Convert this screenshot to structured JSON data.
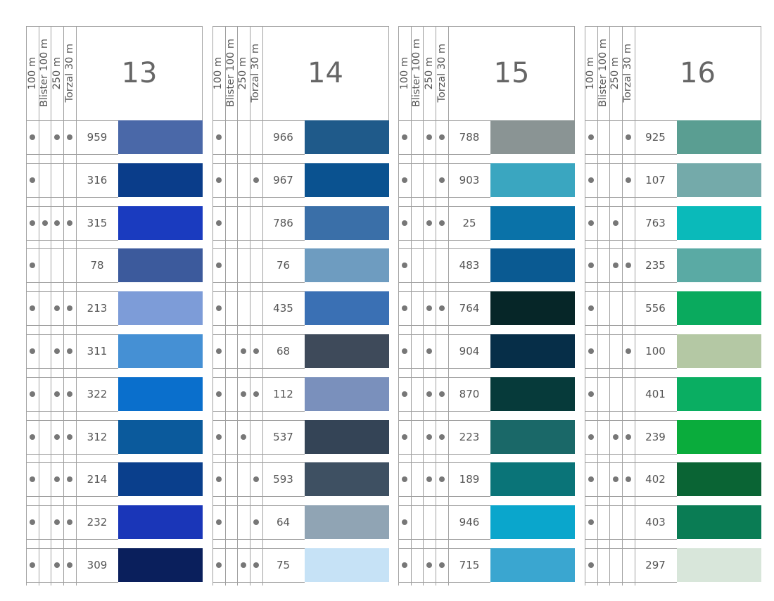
{
  "column_headers": [
    "100 m",
    "Blister 100 m",
    "250 m",
    "Torzal 30 m"
  ],
  "panels": [
    {
      "number": "13",
      "rows": [
        {
          "code": "959",
          "avail": [
            1,
            0,
            1,
            1
          ],
          "color": "#4a68a8"
        },
        {
          "code": "316",
          "avail": [
            1,
            0,
            0,
            0
          ],
          "color": "#0a3d8a"
        },
        {
          "code": "315",
          "avail": [
            1,
            1,
            1,
            1
          ],
          "color": "#1a3bbf"
        },
        {
          "code": "78",
          "avail": [
            1,
            0,
            0,
            0
          ],
          "color": "#3c5a9c"
        },
        {
          "code": "213",
          "avail": [
            1,
            0,
            1,
            1
          ],
          "color": "#7d9cd8"
        },
        {
          "code": "311",
          "avail": [
            1,
            0,
            1,
            1
          ],
          "color": "#4590d4"
        },
        {
          "code": "322",
          "avail": [
            1,
            0,
            1,
            1
          ],
          "color": "#0a6fcc"
        },
        {
          "code": "312",
          "avail": [
            1,
            0,
            1,
            1
          ],
          "color": "#0b5a9c"
        },
        {
          "code": "214",
          "avail": [
            1,
            0,
            1,
            1
          ],
          "color": "#0a3f8c"
        },
        {
          "code": "232",
          "avail": [
            1,
            0,
            1,
            1
          ],
          "color": "#1a36b8"
        },
        {
          "code": "309",
          "avail": [
            1,
            0,
            1,
            1
          ],
          "color": "#0a1f5c"
        }
      ]
    },
    {
      "number": "14",
      "rows": [
        {
          "code": "966",
          "avail": [
            1,
            0,
            0,
            0
          ],
          "color": "#1f5a8a"
        },
        {
          "code": "967",
          "avail": [
            1,
            0,
            0,
            1
          ],
          "color": "#0a5290"
        },
        {
          "code": "786",
          "avail": [
            1,
            0,
            0,
            0
          ],
          "color": "#3a6fa8"
        },
        {
          "code": "76",
          "avail": [
            1,
            0,
            0,
            0
          ],
          "color": "#6e9cc0"
        },
        {
          "code": "435",
          "avail": [
            1,
            0,
            0,
            0
          ],
          "color": "#3a70b4"
        },
        {
          "code": "68",
          "avail": [
            1,
            0,
            1,
            1
          ],
          "color": "#3e4a5a"
        },
        {
          "code": "112",
          "avail": [
            1,
            0,
            1,
            1
          ],
          "color": "#7a90bc"
        },
        {
          "code": "537",
          "avail": [
            1,
            0,
            1,
            0
          ],
          "color": "#344456"
        },
        {
          "code": "593",
          "avail": [
            1,
            0,
            0,
            1
          ],
          "color": "#3e5062"
        },
        {
          "code": "64",
          "avail": [
            1,
            0,
            0,
            1
          ],
          "color": "#90a4b4"
        },
        {
          "code": "75",
          "avail": [
            1,
            0,
            1,
            1
          ],
          "color": "#c6e2f6"
        }
      ]
    },
    {
      "number": "15",
      "rows": [
        {
          "code": "788",
          "avail": [
            1,
            0,
            1,
            1
          ],
          "color": "#8a9494"
        },
        {
          "code": "903",
          "avail": [
            1,
            0,
            0,
            1
          ],
          "color": "#3aa6c0"
        },
        {
          "code": "25",
          "avail": [
            1,
            0,
            1,
            1
          ],
          "color": "#0a72a8"
        },
        {
          "code": "483",
          "avail": [
            1,
            0,
            0,
            0
          ],
          "color": "#0a5a92"
        },
        {
          "code": "764",
          "avail": [
            1,
            0,
            1,
            1
          ],
          "color": "#062628"
        },
        {
          "code": "904",
          "avail": [
            1,
            0,
            1,
            0
          ],
          "color": "#062e48"
        },
        {
          "code": "870",
          "avail": [
            1,
            0,
            1,
            1
          ],
          "color": "#063a3a"
        },
        {
          "code": "223",
          "avail": [
            1,
            0,
            1,
            1
          ],
          "color": "#1a6868"
        },
        {
          "code": "189",
          "avail": [
            1,
            0,
            1,
            1
          ],
          "color": "#0a7478"
        },
        {
          "code": "946",
          "avail": [
            1,
            0,
            0,
            0
          ],
          "color": "#0aa6cc"
        },
        {
          "code": "715",
          "avail": [
            1,
            0,
            1,
            1
          ],
          "color": "#3aa6d0"
        }
      ]
    },
    {
      "number": "16",
      "rows": [
        {
          "code": "925",
          "avail": [
            1,
            0,
            0,
            1
          ],
          "color": "#5a9e92"
        },
        {
          "code": "107",
          "avail": [
            1,
            0,
            0,
            1
          ],
          "color": "#74aaaa"
        },
        {
          "code": "763",
          "avail": [
            1,
            0,
            1,
            0
          ],
          "color": "#0ababa"
        },
        {
          "code": "235",
          "avail": [
            1,
            0,
            1,
            1
          ],
          "color": "#5aaaa4"
        },
        {
          "code": "556",
          "avail": [
            1,
            0,
            0,
            0
          ],
          "color": "#0aaa5e"
        },
        {
          "code": "100",
          "avail": [
            1,
            0,
            0,
            1
          ],
          "color": "#b4c8a4"
        },
        {
          "code": "401",
          "avail": [
            1,
            0,
            0,
            0
          ],
          "color": "#0aae62"
        },
        {
          "code": "239",
          "avail": [
            1,
            0,
            1,
            1
          ],
          "color": "#0aac3c"
        },
        {
          "code": "402",
          "avail": [
            1,
            0,
            1,
            1
          ],
          "color": "#0a6434"
        },
        {
          "code": "403",
          "avail": [
            1,
            0,
            0,
            0
          ],
          "color": "#0a7c54"
        },
        {
          "code": "297",
          "avail": [
            1,
            0,
            0,
            0
          ],
          "color": "#d8e6da"
        }
      ]
    }
  ]
}
